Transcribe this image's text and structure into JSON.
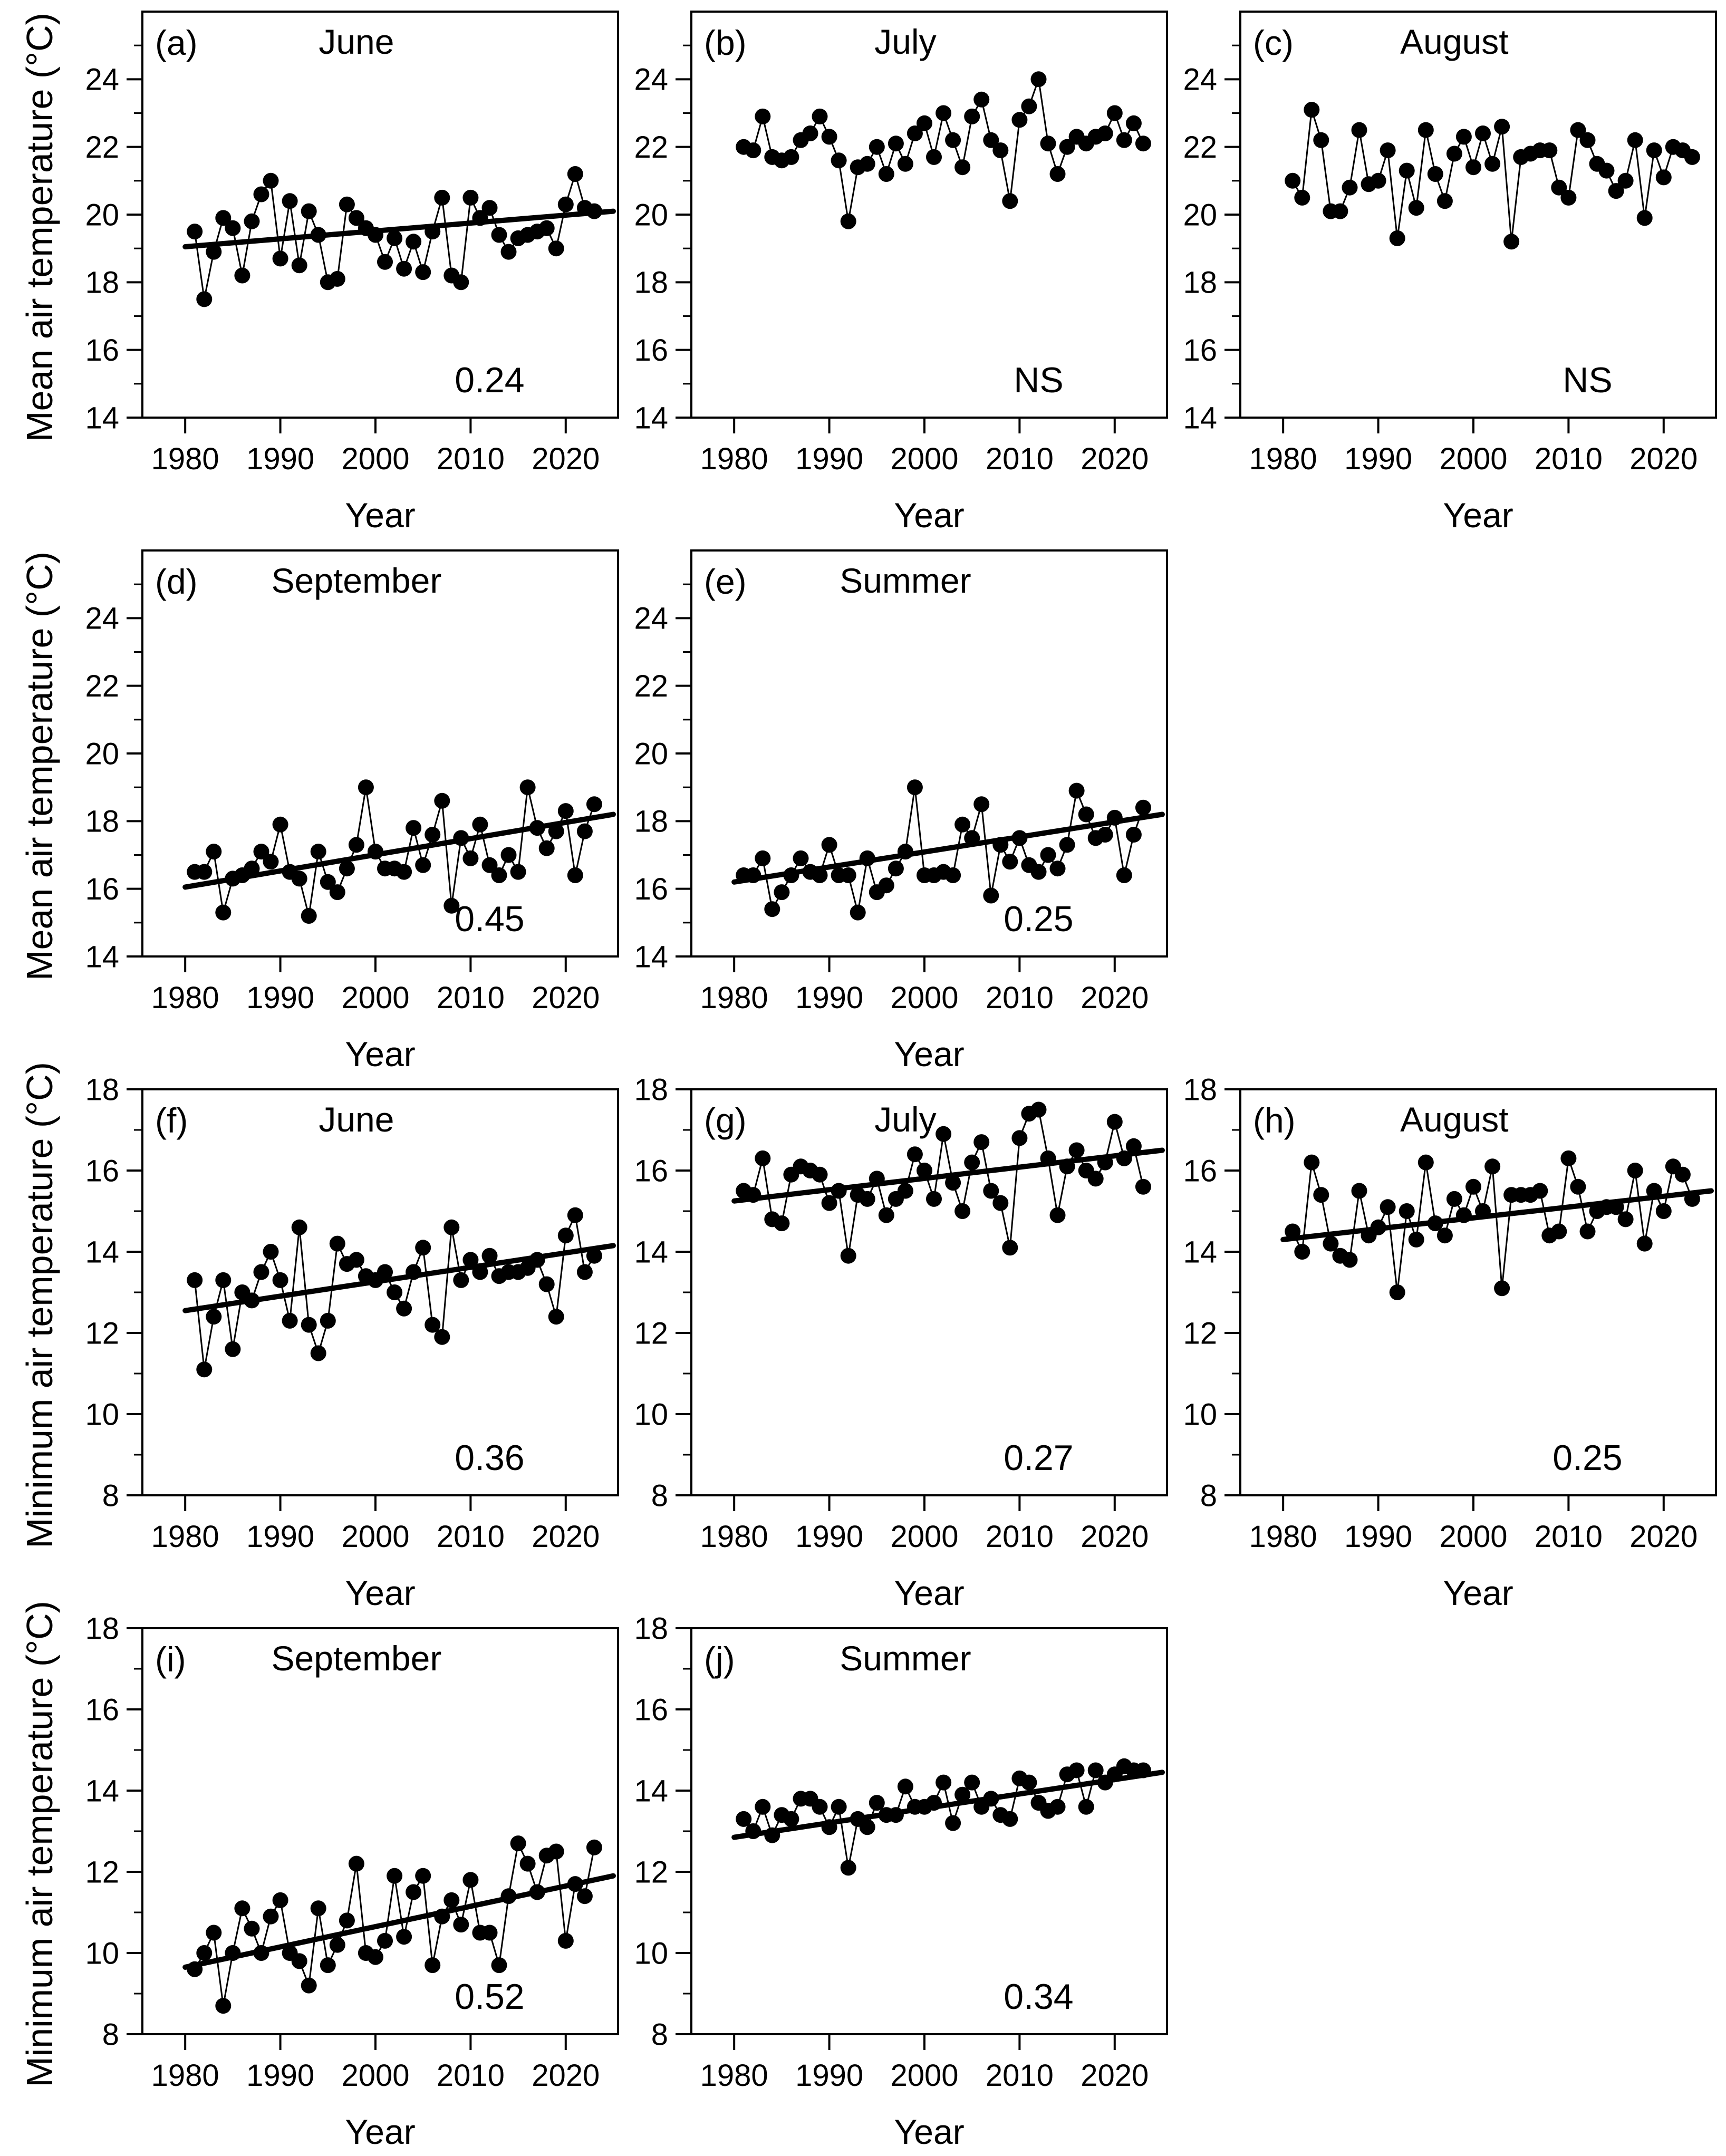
{
  "figure": {
    "background": "#ffffff",
    "ink_color": "#000000",
    "xlabel": "Year",
    "x_ticks": [
      1980,
      1990,
      2000,
      2010,
      2020
    ],
    "x_range": [
      1975.5,
      2025.5
    ],
    "years_start": 1981
  },
  "rows": [
    {
      "ylabel": "Mean air temperature (°C)"
    },
    {
      "ylabel": "Mean air temperature (°C)"
    },
    {
      "ylabel": "Minimum air temperature (°C)"
    },
    {
      "ylabel": "Minimum air temperature (°C)"
    }
  ],
  "chart_data": [
    {
      "id": "a",
      "type": "scatter-line",
      "row": 0,
      "col": 0,
      "letter": "(a)",
      "title": "June",
      "annotation": "0.24",
      "xlabel": "Year",
      "ylabel": "Mean air temperature (°C)",
      "ylim": [
        14,
        26
      ],
      "yticks": [
        14,
        16,
        18,
        20,
        22,
        24
      ],
      "trend": {
        "x": [
          1980,
          2025
        ],
        "y": [
          19.05,
          20.1
        ]
      },
      "values": [
        19.5,
        17.5,
        18.9,
        19.9,
        19.6,
        18.2,
        19.8,
        20.6,
        21.0,
        18.7,
        20.4,
        18.5,
        20.1,
        19.4,
        18.0,
        18.1,
        20.3,
        19.9,
        19.6,
        19.4,
        18.6,
        19.3,
        18.4,
        19.2,
        18.3,
        19.5,
        20.5,
        18.2,
        18.0,
        20.5,
        19.9,
        20.2,
        19.4,
        18.9,
        19.3,
        19.4,
        19.5,
        19.6,
        19.0,
        20.3,
        21.2,
        20.2,
        20.1
      ]
    },
    {
      "id": "b",
      "type": "scatter-line",
      "row": 0,
      "col": 1,
      "letter": "(b)",
      "title": "July",
      "annotation": "NS",
      "xlabel": "Year",
      "ylabel": "Mean air temperature (°C)",
      "ylim": [
        14,
        26
      ],
      "yticks": [
        14,
        16,
        18,
        20,
        22,
        24
      ],
      "trend": null,
      "values": [
        22.0,
        21.9,
        22.9,
        21.7,
        21.6,
        21.7,
        22.2,
        22.4,
        22.9,
        22.3,
        21.6,
        19.8,
        21.4,
        21.5,
        22.0,
        21.2,
        22.1,
        21.5,
        22.4,
        22.7,
        21.7,
        23.0,
        22.2,
        21.4,
        22.9,
        23.4,
        22.2,
        21.9,
        20.4,
        22.8,
        23.2,
        24.0,
        22.1,
        21.2,
        22.0,
        22.3,
        22.1,
        22.3,
        22.4,
        23.0,
        22.2,
        22.7,
        22.1
      ]
    },
    {
      "id": "c",
      "type": "scatter-line",
      "row": 0,
      "col": 2,
      "letter": "(c)",
      "title": "August",
      "annotation": "NS",
      "xlabel": "Year",
      "ylabel": "Mean air temperature (°C)",
      "ylim": [
        14,
        26
      ],
      "yticks": [
        14,
        16,
        18,
        20,
        22,
        24
      ],
      "trend": null,
      "values": [
        21.0,
        20.5,
        23.1,
        22.2,
        20.1,
        20.1,
        20.8,
        22.5,
        20.9,
        21.0,
        21.9,
        19.3,
        21.3,
        20.2,
        22.5,
        21.2,
        20.4,
        21.8,
        22.3,
        21.4,
        22.4,
        21.5,
        22.6,
        19.2,
        21.7,
        21.8,
        21.9,
        21.9,
        20.8,
        20.5,
        22.5,
        22.2,
        21.5,
        21.3,
        20.7,
        21.0,
        22.2,
        19.9,
        21.9,
        21.1,
        22.0,
        21.9,
        21.7
      ]
    },
    {
      "id": "d",
      "type": "scatter-line",
      "row": 1,
      "col": 0,
      "letter": "(d)",
      "title": "September",
      "annotation": "0.45",
      "xlabel": "Year",
      "ylabel": "Mean air temperature (°C)",
      "ylim": [
        14,
        26
      ],
      "yticks": [
        14,
        16,
        18,
        20,
        22,
        24
      ],
      "trend": {
        "x": [
          1980,
          2025
        ],
        "y": [
          16.05,
          18.2
        ]
      },
      "values": [
        16.5,
        16.5,
        17.1,
        15.3,
        16.3,
        16.4,
        16.6,
        17.1,
        16.8,
        17.9,
        16.5,
        16.3,
        15.2,
        17.1,
        16.2,
        15.9,
        16.6,
        17.3,
        19.0,
        17.1,
        16.6,
        16.6,
        16.5,
        17.8,
        16.7,
        17.6,
        18.6,
        15.5,
        17.5,
        16.9,
        17.9,
        16.7,
        16.4,
        17.0,
        16.5,
        19.0,
        17.8,
        17.2,
        17.7,
        18.3,
        16.4,
        17.7,
        18.5
      ]
    },
    {
      "id": "e",
      "type": "scatter-line",
      "row": 1,
      "col": 1,
      "letter": "(e)",
      "title": "Summer",
      "annotation": "0.25",
      "xlabel": "Year",
      "ylabel": "Mean air temperature (°C)",
      "ylim": [
        14,
        26
      ],
      "yticks": [
        14,
        16,
        18,
        20,
        22,
        24
      ],
      "trend": {
        "x": [
          1980,
          2025
        ],
        "y": [
          16.2,
          18.2
        ]
      },
      "values": [
        16.4,
        16.4,
        16.9,
        15.4,
        15.9,
        16.4,
        16.9,
        16.5,
        16.4,
        17.3,
        16.4,
        16.4,
        15.3,
        16.9,
        15.9,
        16.1,
        16.6,
        17.1,
        19.0,
        16.4,
        16.4,
        16.5,
        16.4,
        17.9,
        17.5,
        18.5,
        15.8,
        17.3,
        16.8,
        17.5,
        16.7,
        16.5,
        17.0,
        16.6,
        17.3,
        18.9,
        18.2,
        17.5,
        17.6,
        18.1,
        16.4,
        17.6,
        18.4
      ]
    },
    {
      "id": "f",
      "type": "scatter-line",
      "row": 2,
      "col": 0,
      "letter": "(f)",
      "title": "June",
      "annotation": "0.36",
      "xlabel": "Year",
      "ylabel": "Minimum air temperature (°C)",
      "ylim": [
        8,
        18
      ],
      "yticks": [
        8,
        10,
        12,
        14,
        16,
        18
      ],
      "trend": {
        "x": [
          1980,
          2025
        ],
        "y": [
          12.55,
          14.15
        ]
      },
      "values": [
        13.3,
        11.1,
        12.4,
        13.3,
        11.6,
        13.0,
        12.8,
        13.5,
        14.0,
        13.3,
        12.3,
        14.6,
        12.2,
        11.5,
        12.3,
        14.2,
        13.7,
        13.8,
        13.4,
        13.3,
        13.5,
        13.0,
        12.6,
        13.5,
        14.1,
        12.2,
        11.9,
        14.6,
        13.3,
        13.8,
        13.5,
        13.9,
        13.4,
        13.5,
        13.5,
        13.6,
        13.8,
        13.2,
        12.4,
        14.4,
        14.9,
        13.5,
        13.9
      ]
    },
    {
      "id": "g",
      "type": "scatter-line",
      "row": 2,
      "col": 1,
      "letter": "(g)",
      "title": "July",
      "annotation": "0.27",
      "xlabel": "Year",
      "ylabel": "Minimum air temperature (°C)",
      "ylim": [
        8,
        18
      ],
      "yticks": [
        8,
        10,
        12,
        14,
        16,
        18
      ],
      "trend": {
        "x": [
          1980,
          2025
        ],
        "y": [
          15.25,
          16.5
        ]
      },
      "values": [
        15.5,
        15.4,
        16.3,
        14.8,
        14.7,
        15.9,
        16.1,
        16.0,
        15.9,
        15.2,
        15.5,
        13.9,
        15.4,
        15.3,
        15.8,
        14.9,
        15.3,
        15.5,
        16.4,
        16.0,
        15.3,
        16.9,
        15.7,
        15.0,
        16.2,
        16.7,
        15.5,
        15.2,
        14.1,
        16.8,
        17.4,
        17.5,
        16.3,
        14.9,
        16.1,
        16.5,
        16.0,
        15.8,
        16.2,
        17.2,
        16.3,
        16.6,
        15.6
      ]
    },
    {
      "id": "h",
      "type": "scatter-line",
      "row": 2,
      "col": 2,
      "letter": "(h)",
      "title": "August",
      "annotation": "0.25",
      "xlabel": "Year",
      "ylabel": "Minimum air temperature (°C)",
      "ylim": [
        8,
        18
      ],
      "yticks": [
        8,
        10,
        12,
        14,
        16,
        18
      ],
      "trend": {
        "x": [
          1980,
          2025
        ],
        "y": [
          14.3,
          15.5
        ]
      },
      "values": [
        14.5,
        14.0,
        16.2,
        15.4,
        14.2,
        13.9,
        13.8,
        15.5,
        14.4,
        14.6,
        15.1,
        13.0,
        15.0,
        14.3,
        16.2,
        14.7,
        14.4,
        15.3,
        14.9,
        15.6,
        15.0,
        16.1,
        13.1,
        15.4,
        15.4,
        15.4,
        15.5,
        14.4,
        14.5,
        16.3,
        15.6,
        14.5,
        15.0,
        15.1,
        15.1,
        14.8,
        16.0,
        14.2,
        15.5,
        15.0,
        16.1,
        15.9,
        15.3
      ]
    },
    {
      "id": "i",
      "type": "scatter-line",
      "row": 3,
      "col": 0,
      "letter": "(i)",
      "title": "September",
      "annotation": "0.52",
      "xlabel": "Year",
      "ylabel": "Minimum air temperature (°C)",
      "ylim": [
        8,
        18
      ],
      "yticks": [
        8,
        10,
        12,
        14,
        16,
        18
      ],
      "trend": {
        "x": [
          1980,
          2025
        ],
        "y": [
          9.65,
          11.9
        ]
      },
      "values": [
        9.6,
        10.0,
        10.5,
        8.7,
        10.0,
        11.1,
        10.6,
        10.0,
        10.9,
        11.3,
        10.0,
        9.8,
        9.2,
        11.1,
        9.7,
        10.2,
        10.8,
        12.2,
        10.0,
        9.9,
        10.3,
        11.9,
        10.4,
        11.5,
        11.9,
        9.7,
        10.9,
        11.3,
        10.7,
        11.8,
        10.5,
        10.5,
        9.7,
        11.4,
        12.7,
        12.2,
        11.5,
        12.4,
        12.5,
        10.3,
        11.7,
        11.4,
        12.6
      ]
    },
    {
      "id": "j",
      "type": "scatter-line",
      "row": 3,
      "col": 1,
      "letter": "(j)",
      "title": "Summer",
      "annotation": "0.34",
      "xlabel": "Year",
      "ylabel": "Minimum air temperature (°C)",
      "ylim": [
        8,
        18
      ],
      "yticks": [
        8,
        10,
        12,
        14,
        16,
        18
      ],
      "trend": {
        "x": [
          1980,
          2025
        ],
        "y": [
          12.85,
          14.45
        ]
      },
      "values": [
        13.3,
        13.0,
        13.6,
        12.9,
        13.4,
        13.3,
        13.8,
        13.8,
        13.6,
        13.1,
        13.6,
        12.1,
        13.3,
        13.1,
        13.7,
        13.4,
        13.4,
        14.1,
        13.6,
        13.6,
        13.7,
        14.2,
        13.2,
        13.9,
        14.2,
        13.6,
        13.8,
        13.4,
        13.3,
        14.3,
        14.2,
        13.7,
        13.5,
        13.6,
        14.4,
        14.5,
        13.6,
        14.5,
        14.2,
        14.4,
        14.6,
        14.5,
        14.5
      ]
    }
  ]
}
